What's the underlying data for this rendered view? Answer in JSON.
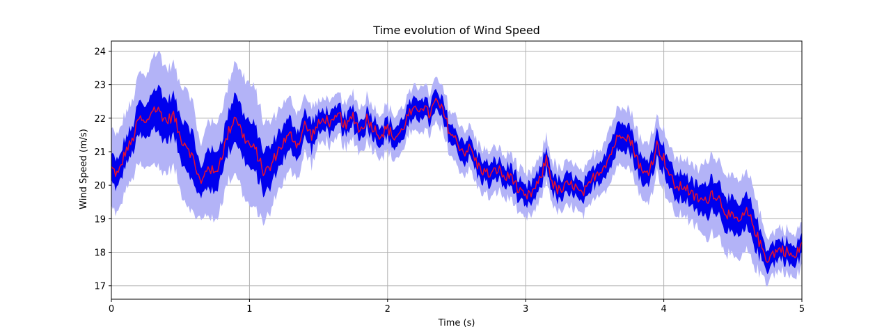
{
  "chart_data": {
    "type": "line",
    "title": "Time evolution of Wind Speed",
    "xlabel": "Time (s)",
    "ylabel": "Wind Speed (m/s)",
    "xlim": [
      0,
      5
    ],
    "ylim": [
      16.6,
      24.3
    ],
    "xticks": [
      0,
      1,
      2,
      3,
      4,
      5
    ],
    "yticks": [
      17,
      18,
      19,
      20,
      21,
      22,
      23,
      24
    ],
    "grid": true,
    "colors": {
      "mean_line": "#e8112d",
      "inner_band": "#0000ee",
      "outer_band": "#b3b3f7"
    },
    "x": [
      0,
      0.05,
      0.1,
      0.15,
      0.2,
      0.25,
      0.3,
      0.35,
      0.4,
      0.45,
      0.5,
      0.55,
      0.6,
      0.65,
      0.7,
      0.75,
      0.8,
      0.85,
      0.9,
      0.95,
      1.0,
      1.05,
      1.1,
      1.15,
      1.2,
      1.25,
      1.3,
      1.35,
      1.4,
      1.45,
      1.5,
      1.55,
      1.6,
      1.65,
      1.7,
      1.75,
      1.8,
      1.85,
      1.9,
      1.95,
      2.0,
      2.05,
      2.1,
      2.15,
      2.2,
      2.25,
      2.3,
      2.35,
      2.4,
      2.45,
      2.5,
      2.55,
      2.6,
      2.65,
      2.7,
      2.75,
      2.8,
      2.85,
      2.9,
      2.95,
      3.0,
      3.05,
      3.1,
      3.15,
      3.2,
      3.25,
      3.3,
      3.35,
      3.4,
      3.45,
      3.5,
      3.55,
      3.6,
      3.65,
      3.7,
      3.75,
      3.8,
      3.85,
      3.9,
      3.95,
      4.0,
      4.05,
      4.1,
      4.15,
      4.2,
      4.25,
      4.3,
      4.35,
      4.4,
      4.45,
      4.5,
      4.55,
      4.6,
      4.65,
      4.7,
      4.75,
      4.8,
      4.85,
      4.9,
      4.95,
      5.0
    ],
    "series": [
      {
        "role": "mean",
        "values": [
          20.5,
          20.3,
          21.0,
          21.3,
          22.0,
          21.8,
          22.3,
          22.2,
          21.9,
          22.1,
          21.4,
          21.2,
          20.7,
          20.0,
          20.6,
          20.3,
          20.9,
          21.6,
          22.1,
          21.5,
          21.2,
          21.0,
          20.4,
          20.5,
          21.0,
          21.3,
          21.5,
          21.2,
          21.8,
          21.5,
          21.8,
          22.0,
          21.8,
          22.1,
          21.7,
          22.1,
          21.6,
          22.0,
          21.7,
          21.5,
          21.7,
          21.4,
          21.6,
          22.1,
          22.2,
          22.4,
          22.1,
          22.5,
          22.2,
          21.6,
          21.3,
          21.0,
          21.1,
          20.6,
          20.4,
          20.3,
          20.5,
          20.2,
          20.3,
          19.8,
          19.6,
          19.8,
          20.1,
          20.8,
          20.0,
          19.8,
          20.0,
          20.0,
          19.7,
          19.9,
          20.3,
          20.5,
          20.8,
          21.3,
          21.6,
          21.4,
          20.9,
          20.3,
          20.5,
          21.2,
          20.8,
          20.2,
          19.9,
          20.0,
          19.7,
          19.6,
          19.5,
          19.8,
          19.6,
          19.2,
          19.0,
          18.9,
          19.2,
          18.8,
          18.2,
          17.8,
          18.0,
          18.1,
          18.0,
          17.8,
          18.3
        ],
        "lower": [
          20.1,
          19.9,
          20.6,
          20.9,
          21.5,
          21.3,
          21.7,
          21.5,
          21.3,
          21.5,
          20.8,
          20.5,
          20.0,
          19.6,
          20.0,
          19.7,
          20.4,
          21.0,
          21.4,
          20.8,
          20.5,
          20.3,
          19.8,
          19.9,
          20.5,
          20.8,
          21.0,
          20.8,
          21.4,
          21.1,
          21.5,
          21.7,
          21.5,
          21.8,
          21.4,
          21.8,
          21.3,
          21.7,
          21.4,
          21.2,
          21.4,
          21.1,
          21.3,
          21.8,
          21.9,
          22.1,
          21.8,
          22.2,
          21.9,
          21.3,
          21.0,
          20.7,
          20.8,
          20.3,
          20.1,
          20.0,
          20.2,
          19.9,
          20.0,
          19.5,
          19.3,
          19.5,
          19.8,
          20.5,
          19.7,
          19.5,
          19.7,
          19.7,
          19.4,
          19.6,
          20.0,
          20.2,
          20.4,
          20.9,
          21.2,
          21.0,
          20.5,
          19.9,
          20.1,
          20.8,
          20.4,
          19.8,
          19.5,
          19.6,
          19.3,
          19.2,
          19.0,
          19.3,
          19.1,
          18.7,
          18.5,
          18.4,
          18.7,
          18.3,
          17.8,
          17.5,
          17.7,
          17.8,
          17.7,
          17.5,
          18.0
        ],
        "upper": [
          20.9,
          20.7,
          21.4,
          21.7,
          22.5,
          22.3,
          22.9,
          22.9,
          22.5,
          22.7,
          22.0,
          21.9,
          21.4,
          20.4,
          21.2,
          20.9,
          21.4,
          22.2,
          22.8,
          22.2,
          21.9,
          21.7,
          21.0,
          21.1,
          21.5,
          21.8,
          22.0,
          21.6,
          22.2,
          21.9,
          22.1,
          22.3,
          22.1,
          22.4,
          22.0,
          22.4,
          21.9,
          22.3,
          22.0,
          21.8,
          22.0,
          21.7,
          21.9,
          22.4,
          22.5,
          22.7,
          22.4,
          22.8,
          22.5,
          21.9,
          21.6,
          21.3,
          21.4,
          20.9,
          20.7,
          20.6,
          20.8,
          20.5,
          20.6,
          20.1,
          19.9,
          20.1,
          20.4,
          21.1,
          20.3,
          20.1,
          20.3,
          20.3,
          20.0,
          20.2,
          20.6,
          20.8,
          21.2,
          21.7,
          22.0,
          21.8,
          21.3,
          20.7,
          20.9,
          21.6,
          21.2,
          20.6,
          20.3,
          20.4,
          20.1,
          20.0,
          20.0,
          20.3,
          20.1,
          19.7,
          19.5,
          19.4,
          19.7,
          19.3,
          18.6,
          18.1,
          18.3,
          18.4,
          18.3,
          18.1,
          18.6
        ],
        "lower_outer": [
          19.4,
          19.2,
          19.9,
          20.2,
          20.7,
          20.5,
          20.8,
          20.5,
          20.4,
          20.6,
          19.9,
          19.5,
          19.2,
          19.0,
          19.2,
          18.9,
          19.6,
          20.2,
          20.5,
          19.8,
          19.4,
          19.3,
          19.0,
          19.2,
          19.9,
          20.2,
          20.5,
          20.3,
          21.0,
          20.7,
          21.2,
          21.4,
          21.2,
          21.5,
          21.1,
          21.5,
          21.0,
          21.4,
          21.1,
          20.9,
          21.1,
          20.8,
          21.0,
          21.5,
          21.6,
          21.8,
          21.5,
          21.9,
          21.6,
          21.0,
          20.7,
          20.4,
          20.5,
          20.0,
          19.8,
          19.7,
          19.9,
          19.6,
          19.7,
          19.2,
          19.0,
          19.2,
          19.5,
          20.2,
          19.4,
          19.2,
          19.4,
          19.4,
          19.1,
          19.3,
          19.7,
          19.9,
          20.0,
          20.5,
          20.8,
          20.6,
          20.1,
          19.5,
          19.7,
          20.4,
          20.0,
          19.4,
          19.1,
          19.2,
          18.9,
          18.8,
          18.4,
          18.7,
          18.5,
          18.1,
          17.9,
          17.8,
          18.1,
          17.7,
          17.4,
          17.2,
          17.4,
          17.5,
          17.4,
          17.2,
          17.7
        ],
        "upper_outer": [
          21.6,
          21.4,
          22.1,
          22.4,
          23.3,
          23.1,
          23.8,
          23.9,
          23.4,
          23.6,
          22.9,
          22.9,
          22.2,
          21.0,
          22.0,
          21.7,
          22.2,
          23.0,
          23.7,
          23.2,
          23.0,
          22.7,
          21.8,
          21.8,
          22.1,
          22.4,
          22.5,
          22.1,
          22.6,
          22.3,
          22.4,
          22.6,
          22.4,
          22.7,
          22.3,
          22.7,
          22.2,
          22.6,
          22.3,
          22.1,
          22.3,
          22.0,
          22.2,
          22.7,
          22.8,
          23.0,
          22.7,
          23.1,
          22.8,
          22.2,
          21.9,
          21.6,
          21.7,
          21.2,
          21.0,
          20.9,
          21.1,
          20.8,
          20.9,
          20.4,
          20.2,
          20.4,
          20.7,
          21.4,
          20.6,
          20.4,
          20.6,
          20.6,
          20.3,
          20.5,
          20.9,
          21.1,
          21.6,
          22.1,
          22.4,
          22.2,
          21.7,
          21.1,
          21.3,
          22.0,
          21.6,
          21.0,
          20.7,
          20.8,
          20.5,
          20.4,
          20.6,
          20.9,
          20.7,
          20.3,
          20.1,
          20.0,
          20.3,
          19.9,
          19.0,
          18.4,
          18.6,
          18.7,
          18.6,
          18.4,
          18.9
        ]
      }
    ]
  }
}
